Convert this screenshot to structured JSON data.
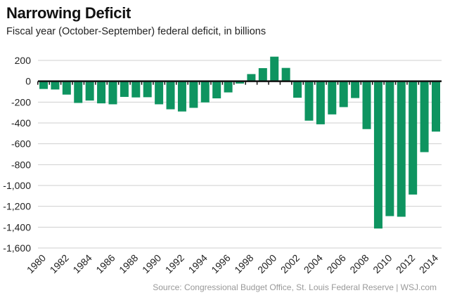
{
  "title": "Narrowing Deficit",
  "subtitle": "Fiscal year (October-September) federal deficit, in billions",
  "source": "Source: Congressional Budget Office, St. Louis Federal Reserve  |  WSJ.com",
  "chart_data": {
    "type": "bar",
    "title": "Narrowing Deficit",
    "subtitle": "Fiscal year (October-September) federal deficit, in billions",
    "xlabel": "",
    "ylabel": "",
    "ylim": [
      -1600,
      200
    ],
    "grid": true,
    "bar_color": "#0e9460",
    "y_ticks": [
      200,
      0,
      -200,
      -400,
      -600,
      -800,
      -1000,
      -1200,
      -1400,
      -1600
    ],
    "y_tick_labels": [
      "200",
      "0",
      "-200",
      "-400",
      "-600",
      "-800",
      "-1,000",
      "-1,200",
      "-1,400",
      "-1,600"
    ],
    "x_tick_labels": [
      "1980",
      "1982",
      "1984",
      "1986",
      "1988",
      "1990",
      "1992",
      "1994",
      "1996",
      "1998",
      "2000",
      "2002",
      "2004",
      "2006",
      "2008",
      "2010",
      "2012",
      "2014"
    ],
    "categories": [
      "1980",
      "1981",
      "1982",
      "1983",
      "1984",
      "1985",
      "1986",
      "1987",
      "1988",
      "1989",
      "1990",
      "1991",
      "1992",
      "1993",
      "1994",
      "1995",
      "1996",
      "1997",
      "1998",
      "1999",
      "2000",
      "2001",
      "2002",
      "2003",
      "2004",
      "2005",
      "2006",
      "2007",
      "2008",
      "2009",
      "2010",
      "2011",
      "2012",
      "2013",
      "2014"
    ],
    "values": [
      -74,
      -79,
      -128,
      -208,
      -185,
      -212,
      -221,
      -150,
      -155,
      -153,
      -221,
      -269,
      -290,
      -255,
      -203,
      -164,
      -107,
      -22,
      69,
      126,
      236,
      128,
      -158,
      -378,
      -413,
      -318,
      -248,
      -161,
      -459,
      -1413,
      -1294,
      -1300,
      -1087,
      -680,
      -483
    ]
  }
}
